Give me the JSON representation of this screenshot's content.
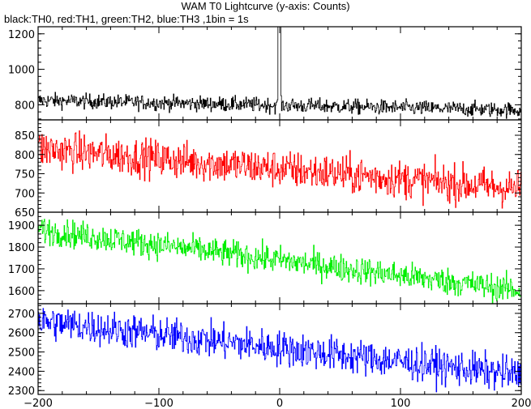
{
  "title": "WAM T0 Lightcurve (y-axis: Counts)",
  "subtitle": "black:TH0, red:TH1, green:TH2, blue:TH3 ,1bin = 1s",
  "chart_data": {
    "type": "line",
    "title": "WAM T0 Lightcurve (y-axis: Counts)",
    "subtitle": "black:TH0, red:TH1, green:TH2, blue:TH3 ,1bin = 1s",
    "ylabel": "Counts",
    "xlim": [
      -200,
      200
    ],
    "x_ticks": [
      -200,
      -100,
      0,
      100,
      200
    ],
    "bin_seconds": 1,
    "grid": false,
    "panels": [
      {
        "name": "TH0",
        "color": "#000000",
        "ylim": [
          715,
          1240
        ],
        "y_ticks": [
          800,
          1000,
          1200
        ],
        "trend": [
          [
            -200,
            825
          ],
          [
            200,
            770
          ]
        ],
        "noise": 30,
        "peak": {
          "x": 0,
          "y": 1240
        }
      },
      {
        "name": "TH1",
        "color": "#ff0000",
        "ylim": [
          650,
          890
        ],
        "y_ticks": [
          650,
          700,
          750,
          800,
          850
        ],
        "trend": [
          [
            -200,
            815
          ],
          [
            200,
            710
          ]
        ],
        "noise": 35
      },
      {
        "name": "TH2",
        "color": "#00ee00",
        "ylim": [
          1540,
          1960
        ],
        "y_ticks": [
          1600,
          1700,
          1800,
          1900
        ],
        "trend": [
          [
            -200,
            1880
          ],
          [
            200,
            1600
          ]
        ],
        "noise": 45
      },
      {
        "name": "TH3",
        "color": "#0000ff",
        "ylim": [
          2280,
          2750
        ],
        "y_ticks": [
          2300,
          2400,
          2500,
          2600,
          2700
        ],
        "trend": [
          [
            -200,
            2660
          ],
          [
            200,
            2380
          ]
        ],
        "noise": 65
      }
    ]
  }
}
